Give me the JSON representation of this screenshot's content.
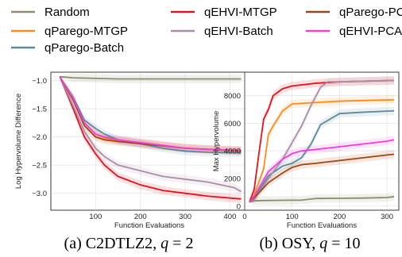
{
  "legend": [
    {
      "name": "Random",
      "color": "#8c8c6e"
    },
    {
      "name": "qParego-MTGP",
      "color": "#ff8c1a"
    },
    {
      "name": "qParego-Batch",
      "color": "#5b8a99"
    },
    {
      "name": "qEHVI-MTGP",
      "color": "#e3121e"
    },
    {
      "name": "qEHVI-Batch",
      "color": "#a98ea8"
    },
    {
      "name": "qParego-PCA",
      "color": "#a0460f"
    },
    {
      "name": "qEHVI-PCA",
      "color": "#ef3fdc"
    }
  ],
  "chart_data": [
    {
      "type": "line",
      "caption": "(a) C2DTLZ2, q = 2",
      "caption_prefix": "(a) C2DTLZ2, ",
      "caption_var": "q",
      "caption_suffix": " = 2",
      "xlabel": "Function Evaluations",
      "ylabel": "Log Hypervolume Difference",
      "xlim": [
        0,
        440
      ],
      "ylim": [
        -3.3,
        -0.85
      ],
      "xticks": [
        100,
        200,
        300,
        400
      ],
      "yticks": [
        -1.0,
        -1.5,
        -2.0,
        -2.5,
        -3.0
      ],
      "grid": true,
      "series": [
        {
          "name": "Random",
          "x": [
            20,
            50,
            100,
            150,
            200,
            300,
            425
          ],
          "y": [
            -0.93,
            -0.95,
            -0.96,
            -0.97,
            -0.97,
            -0.97,
            -0.97
          ]
        },
        {
          "name": "qParego-MTGP",
          "x": [
            20,
            50,
            75,
            100,
            120,
            150,
            200,
            250,
            300,
            350,
            425
          ],
          "y": [
            -0.93,
            -1.3,
            -1.75,
            -1.95,
            -2.02,
            -2.06,
            -2.1,
            -2.15,
            -2.2,
            -2.22,
            -2.24
          ]
        },
        {
          "name": "qParego-Batch",
          "x": [
            20,
            50,
            75,
            100,
            120,
            150,
            200,
            250,
            300,
            350,
            425
          ],
          "y": [
            -0.93,
            -1.3,
            -1.7,
            -1.85,
            -1.95,
            -2.05,
            -2.12,
            -2.2,
            -2.25,
            -2.27,
            -2.28
          ]
        },
        {
          "name": "qEHVI-MTGP",
          "x": [
            20,
            50,
            75,
            100,
            120,
            150,
            200,
            250,
            300,
            350,
            425
          ],
          "y": [
            -0.93,
            -1.5,
            -2.0,
            -2.3,
            -2.5,
            -2.7,
            -2.85,
            -2.95,
            -3.0,
            -3.05,
            -3.1
          ]
        },
        {
          "name": "qEHVI-Batch",
          "x": [
            20,
            50,
            75,
            100,
            120,
            150,
            200,
            250,
            300,
            350,
            410,
            425
          ],
          "y": [
            -0.93,
            -1.45,
            -1.9,
            -2.2,
            -2.35,
            -2.5,
            -2.6,
            -2.7,
            -2.75,
            -2.8,
            -2.9,
            -2.97
          ]
        },
        {
          "name": "qParego-PCA",
          "x": [
            20,
            50,
            75,
            100,
            120,
            150,
            200,
            250,
            300,
            350,
            425
          ],
          "y": [
            -0.93,
            -1.35,
            -1.8,
            -2.0,
            -2.05,
            -2.08,
            -2.12,
            -2.16,
            -2.2,
            -2.22,
            -2.25
          ]
        },
        {
          "name": "qEHVI-PCA",
          "x": [
            20,
            50,
            75,
            100,
            120,
            150,
            200,
            250,
            300,
            350,
            425
          ],
          "y": [
            -0.93,
            -1.32,
            -1.75,
            -1.95,
            -2.0,
            -2.05,
            -2.1,
            -2.15,
            -2.2,
            -2.22,
            -2.24
          ]
        }
      ]
    },
    {
      "type": "line",
      "caption": "(b) OSY, q = 10",
      "caption_prefix": "(b) OSY, ",
      "caption_var": "q",
      "caption_suffix": " = 10",
      "xlabel": "Function Evaluations",
      "ylabel": "Max Hypervolume",
      "xlim": [
        0,
        325
      ],
      "ylim": [
        -300,
        9700
      ],
      "xticks": [
        0,
        100,
        200,
        300
      ],
      "yticks": [
        0,
        2000,
        4000,
        6000,
        8000
      ],
      "grid": true,
      "series": [
        {
          "name": "Random",
          "x": [
            10,
            20,
            40,
            80,
            120,
            150,
            200,
            250,
            300,
            315
          ],
          "y": [
            300,
            380,
            400,
            420,
            430,
            550,
            560,
            580,
            620,
            680
          ]
        },
        {
          "name": "qParego-MTGP",
          "x": [
            10,
            20,
            40,
            50,
            60,
            80,
            100,
            150,
            200,
            250,
            315
          ],
          "y": [
            300,
            800,
            2700,
            5200,
            5800,
            6900,
            7400,
            7500,
            7600,
            7650,
            7700
          ]
        },
        {
          "name": "qParego-Batch",
          "x": [
            10,
            20,
            50,
            80,
            100,
            120,
            140,
            160,
            200,
            250,
            315
          ],
          "y": [
            300,
            600,
            2200,
            2900,
            3100,
            3500,
            4500,
            5900,
            6700,
            6800,
            6900
          ]
        },
        {
          "name": "qEHVI-MTGP",
          "x": [
            10,
            20,
            30,
            40,
            50,
            60,
            80,
            100,
            150,
            200,
            315
          ],
          "y": [
            300,
            1200,
            3800,
            6300,
            7000,
            8000,
            8500,
            8700,
            8900,
            9000,
            9100
          ]
        },
        {
          "name": "qEHVI-Batch",
          "x": [
            10,
            20,
            50,
            80,
            100,
            120,
            140,
            160,
            175,
            200,
            250,
            315
          ],
          "y": [
            300,
            500,
            2000,
            3400,
            4600,
            5800,
            7300,
            8600,
            9000,
            9000,
            9050,
            9100
          ]
        },
        {
          "name": "qParego-PCA",
          "x": [
            10,
            20,
            50,
            80,
            100,
            120,
            150,
            200,
            250,
            300,
            315
          ],
          "y": [
            300,
            600,
            1700,
            2400,
            2800,
            3000,
            3100,
            3300,
            3500,
            3700,
            3750
          ]
        },
        {
          "name": "qEHVI-PCA",
          "x": [
            10,
            20,
            50,
            80,
            100,
            120,
            150,
            200,
            250,
            300,
            315
          ],
          "y": [
            300,
            700,
            2500,
            3400,
            3800,
            4000,
            4100,
            4300,
            4500,
            4700,
            4800
          ]
        }
      ]
    }
  ]
}
